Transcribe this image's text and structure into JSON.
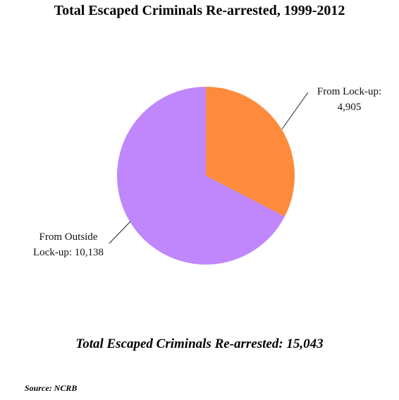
{
  "chart_data": {
    "type": "pie",
    "title": "Total Escaped Criminals Re-arrested, 1999-2012",
    "categories": [
      "From Lock-up:",
      "From Outside Lock-up:"
    ],
    "values": [
      4905,
      10138
    ],
    "value_labels": [
      "4,905",
      "10,138"
    ],
    "colors": [
      "#fd8b3b",
      "#c086fb"
    ],
    "annotation": "Total Escaped Criminals Re-arrested: 15,043",
    "source": "Source: NCRB"
  }
}
